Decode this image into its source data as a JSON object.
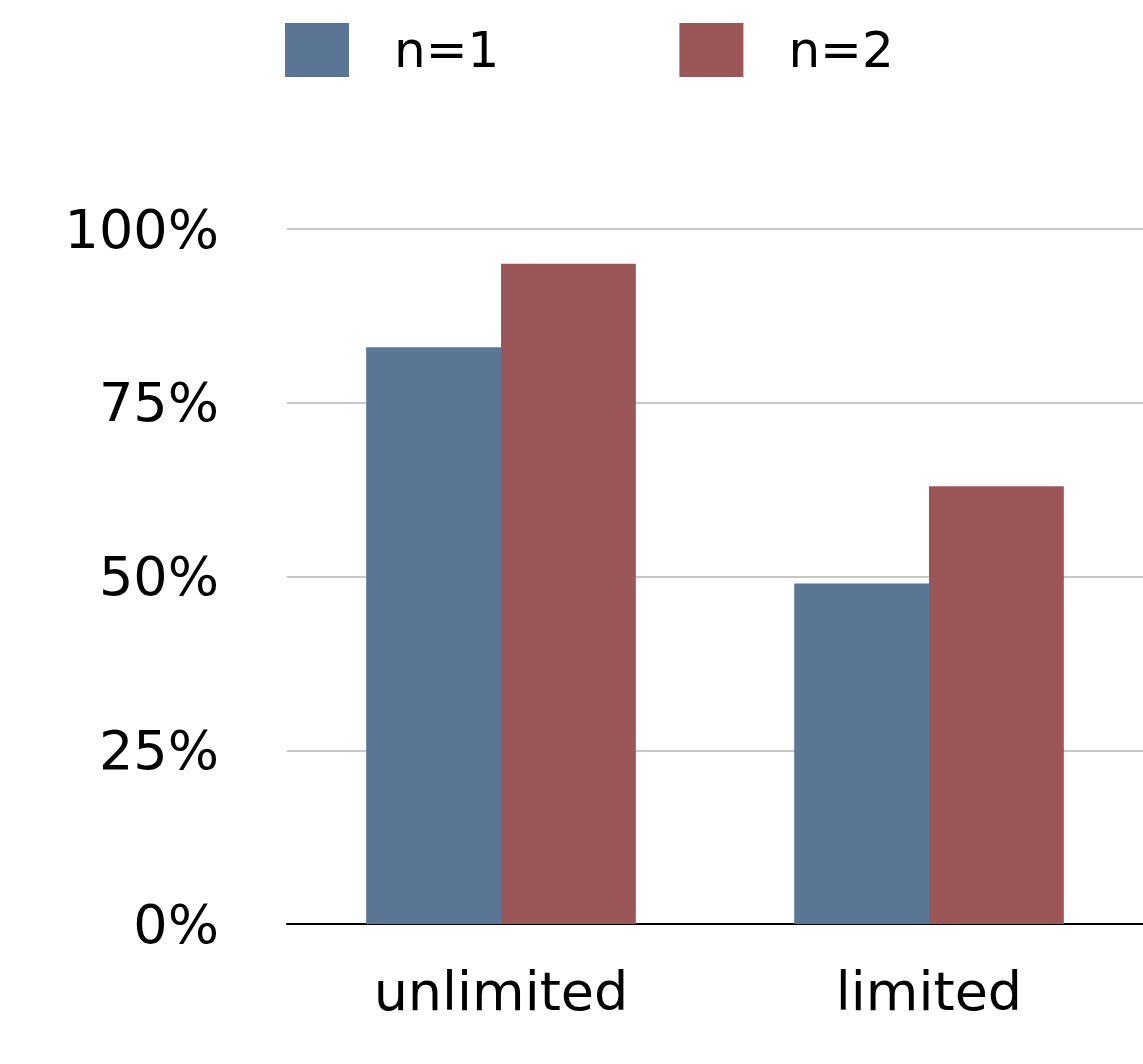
{
  "chart_data": {
    "type": "bar",
    "categories": [
      "unlimited",
      "limited"
    ],
    "series": [
      {
        "name": "n=1",
        "color": "#5b7594",
        "values": [
          83,
          49
        ]
      },
      {
        "name": "n=2",
        "color": "#9b5657",
        "values": [
          95,
          63
        ]
      }
    ],
    "ylim": [
      0,
      100
    ],
    "yticks": [
      {
        "value": 0,
        "label": "0%"
      },
      {
        "value": 25,
        "label": "25%"
      },
      {
        "value": 50,
        "label": "50%"
      },
      {
        "value": 75,
        "label": "75%"
      },
      {
        "value": 100,
        "label": "100%"
      }
    ],
    "grid": "y",
    "legend": "top"
  }
}
